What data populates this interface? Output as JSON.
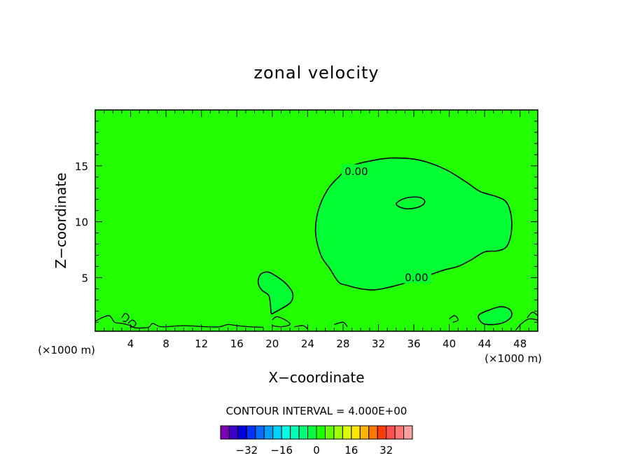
{
  "chart_data": {
    "type": "contour",
    "title": "zonal velocity",
    "xlabel": "X−coordinate",
    "ylabel": "Z−coordinate",
    "x_unit": "(×1000 m)",
    "y_unit": "(×1000 m)",
    "xlim": [
      0,
      50
    ],
    "ylim": [
      0.2,
      20
    ],
    "x_ticks": [
      4,
      8,
      12,
      16,
      20,
      24,
      28,
      32,
      36,
      40,
      44,
      48
    ],
    "y_ticks": [
      5,
      10,
      15
    ],
    "field_color": "#22ff00",
    "contour_interval_text": "CONTOUR INTERVAL = 4.000E+00",
    "contour_labels": [
      {
        "text": "0.00",
        "x": 29.5,
        "y": 14.5
      },
      {
        "text": "0.00",
        "x": 36.3,
        "y": 5.0
      }
    ],
    "regions": [
      {
        "name": "main-positive-region",
        "fill": "#00ff33",
        "path": [
          [
            27.5,
            14.0
          ],
          [
            29.0,
            15.0
          ],
          [
            31.5,
            15.5
          ],
          [
            33.5,
            15.7
          ],
          [
            36.0,
            15.6
          ],
          [
            38.0,
            15.2
          ],
          [
            40.0,
            14.5
          ],
          [
            42.0,
            13.5
          ],
          [
            43.5,
            12.7
          ],
          [
            45.5,
            12.2
          ],
          [
            46.5,
            11.7
          ],
          [
            47.0,
            10.5
          ],
          [
            47.0,
            9.0
          ],
          [
            46.5,
            7.8
          ],
          [
            45.5,
            7.4
          ],
          [
            44.0,
            7.3
          ],
          [
            42.5,
            6.6
          ],
          [
            41.0,
            6.0
          ],
          [
            39.5,
            5.7
          ],
          [
            38.0,
            5.3
          ],
          [
            36.0,
            4.8
          ],
          [
            34.5,
            4.4
          ],
          [
            33.0,
            4.1
          ],
          [
            31.5,
            3.9
          ],
          [
            30.0,
            4.0
          ],
          [
            28.5,
            4.3
          ],
          [
            27.5,
            4.6
          ],
          [
            26.5,
            5.8
          ],
          [
            25.5,
            7.0
          ],
          [
            24.9,
            9.0
          ],
          [
            25.2,
            11.0
          ],
          [
            26.2,
            12.8
          ]
        ]
      },
      {
        "name": "low-left-positive-region",
        "fill": "#00ff33",
        "path": [
          [
            18.7,
            5.3
          ],
          [
            19.5,
            5.5
          ],
          [
            20.3,
            5.2
          ],
          [
            21.5,
            4.5
          ],
          [
            22.3,
            3.6
          ],
          [
            22.1,
            2.8
          ],
          [
            21.0,
            2.2
          ],
          [
            20.3,
            1.9
          ],
          [
            19.9,
            1.8
          ],
          [
            19.8,
            2.5
          ],
          [
            19.6,
            3.4
          ],
          [
            18.8,
            3.9
          ],
          [
            18.4,
            4.6
          ]
        ]
      },
      {
        "name": "right-low-positive-region",
        "fill": "#00ff33",
        "path": [
          [
            43.3,
            1.6
          ],
          [
            44.5,
            2.1
          ],
          [
            45.9,
            2.4
          ],
          [
            46.9,
            2.1
          ],
          [
            47.0,
            1.5
          ],
          [
            46.2,
            1.0
          ],
          [
            45.0,
            0.8
          ],
          [
            43.8,
            0.9
          ]
        ]
      },
      {
        "name": "inner-high-region",
        "fill": "#00ff33",
        "path": [
          [
            34.0,
            11.6
          ],
          [
            35.0,
            12.1
          ],
          [
            36.5,
            12.2
          ],
          [
            37.2,
            11.9
          ],
          [
            37.0,
            11.5
          ],
          [
            36.0,
            11.2
          ],
          [
            34.8,
            11.2
          ]
        ]
      }
    ],
    "contours": [
      {
        "name": "bottom-contour-line",
        "path": [
          [
            0,
            1.1
          ],
          [
            1.5,
            1.6
          ],
          [
            2.2,
            1.0
          ],
          [
            3.0,
            0.9
          ],
          [
            4.0,
            0.7
          ],
          [
            4.5,
            0.5
          ],
          [
            6.0,
            0.55
          ],
          [
            6.5,
            0.9
          ],
          [
            7.5,
            0.6
          ],
          [
            10.0,
            0.7
          ],
          [
            12.5,
            0.6
          ],
          [
            14.0,
            0.6
          ],
          [
            15.0,
            0.8
          ],
          [
            16.0,
            0.7
          ],
          [
            17.5,
            0.6
          ],
          [
            19.0,
            0.55
          ]
        ]
      },
      {
        "name": "bottom-contour-line",
        "path": [
          [
            20.0,
            1.2
          ],
          [
            20.5,
            1.5
          ],
          [
            21.5,
            1.2
          ],
          [
            22.0,
            0.8
          ],
          [
            21.0,
            0.6
          ],
          [
            20.0,
            0.7
          ]
        ]
      },
      {
        "name": "bottom-contour-line",
        "path": [
          [
            22.5,
            0.6
          ],
          [
            23.5,
            0.7
          ],
          [
            24.0,
            0.4
          ]
        ]
      },
      {
        "name": "bottom-contour-line",
        "path": [
          [
            27.0,
            0.8
          ],
          [
            28.0,
            1.0
          ],
          [
            28.5,
            0.6
          ]
        ]
      },
      {
        "name": "bottom-contour-line",
        "path": [
          [
            40.0,
            1.3
          ],
          [
            40.6,
            1.6
          ],
          [
            41.0,
            1.2
          ],
          [
            40.4,
            1.0
          ]
        ]
      },
      {
        "name": "bottom-contour-line",
        "path": [
          [
            47.5,
            0.3
          ],
          [
            48.2,
            0.9
          ],
          [
            49.0,
            1.3
          ],
          [
            50.0,
            1.2
          ]
        ]
      },
      {
        "name": "bottom-contour-line",
        "path": [
          [
            48.8,
            1.4
          ],
          [
            49.4,
            1.9
          ],
          [
            50.0,
            1.6
          ]
        ]
      },
      {
        "name": "bottom-contour-line",
        "path": [
          [
            3.0,
            1.4
          ],
          [
            3.4,
            1.8
          ],
          [
            3.8,
            1.5
          ],
          [
            3.5,
            1.1
          ],
          [
            3.1,
            1.1
          ]
        ]
      },
      {
        "name": "bottom-contour-line",
        "path": [
          [
            3.7,
            0.9
          ],
          [
            4.2,
            1.2
          ],
          [
            4.6,
            0.9
          ],
          [
            4.3,
            0.6
          ],
          [
            3.9,
            0.6
          ]
        ]
      }
    ],
    "colorbar": {
      "colors": [
        "#7a00b4",
        "#3c00c8",
        "#0000dc",
        "#0032ff",
        "#006eff",
        "#00a0ff",
        "#00d2ff",
        "#00ffe6",
        "#00ffb4",
        "#00ff78",
        "#00ff3c",
        "#22ff00",
        "#64ff00",
        "#a0ff00",
        "#dcff00",
        "#ffe600",
        "#ffb400",
        "#ff7800",
        "#ff3c00",
        "#ff5050",
        "#ff7878",
        "#ffa0a0"
      ],
      "tick_labels": [
        "−32",
        "−16",
        "0",
        "16",
        "32"
      ],
      "tick_values": [
        -32,
        -16,
        0,
        16,
        32
      ],
      "vmin": -44,
      "vmax": 44
    }
  }
}
